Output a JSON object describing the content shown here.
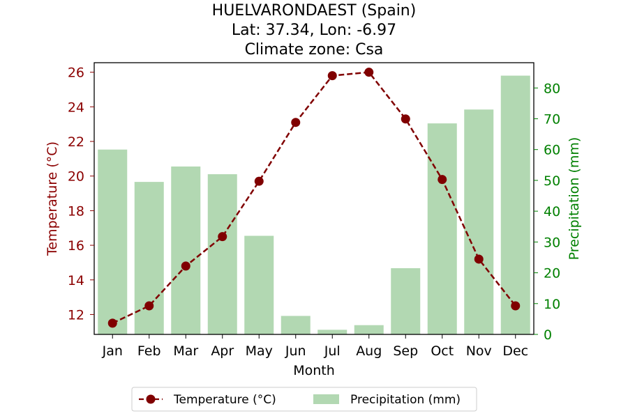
{
  "chart_data": {
    "type": "bar+line",
    "title_lines": [
      "HUELVARONDAEST (Spain)",
      "Lat: 37.34, Lon: -6.97",
      "Climate zone: Csa"
    ],
    "xlabel": "Month",
    "ylabel_left": "Temperature (°C)",
    "ylabel_right": "Precipitation (mm)",
    "categories": [
      "Jan",
      "Feb",
      "Mar",
      "Apr",
      "May",
      "Jun",
      "Jul",
      "Aug",
      "Sep",
      "Oct",
      "Nov",
      "Dec"
    ],
    "temperature": {
      "name": "Temperature (°C)",
      "values": [
        11.5,
        12.5,
        14.8,
        16.5,
        19.7,
        23.1,
        25.8,
        26.0,
        23.3,
        19.8,
        15.2,
        12.5
      ],
      "color": "#800000"
    },
    "precipitation": {
      "name": "Precipitation (mm)",
      "values": [
        60,
        49.5,
        54.5,
        52,
        32,
        6,
        1.5,
        3,
        21.5,
        68.5,
        73,
        84
      ],
      "color": "#b2d8b2"
    },
    "ylim_left": [
      10.85,
      26.55
    ],
    "ylim_right": [
      0,
      88.2
    ],
    "yticks_left": [
      12,
      14,
      16,
      18,
      20,
      22,
      24,
      26
    ],
    "yticks_right": [
      0,
      10,
      20,
      30,
      40,
      50,
      60,
      70,
      80
    ],
    "left_axis_color": "#8b0000",
    "right_axis_color": "#008000",
    "legend_placement": "bottom-center",
    "grid": false
  }
}
